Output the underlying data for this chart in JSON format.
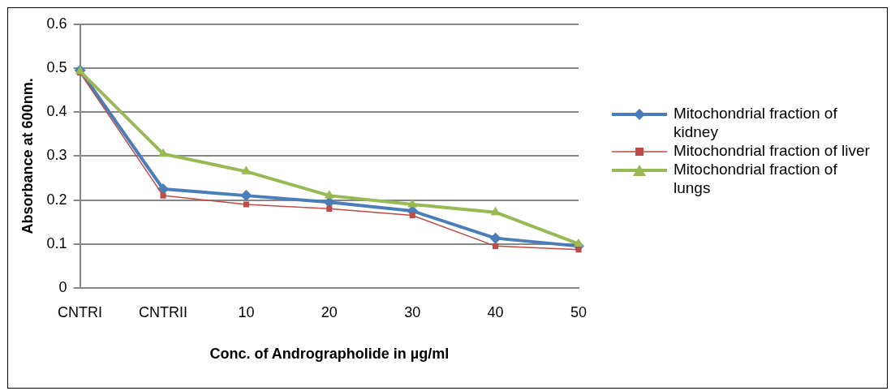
{
  "chart_data": {
    "type": "line",
    "xlabel": "Conc. of Andrographolide in µg/ml",
    "ylabel": "Absorbance at 600nm.",
    "categories": [
      "CNTRI",
      "CNTRII",
      "10",
      "20",
      "30",
      "40",
      "50"
    ],
    "series": [
      {
        "name": "Mitochondrial fraction of kidney",
        "color": "#4a7ebb",
        "marker": "diamond",
        "values": [
          0.495,
          0.225,
          0.21,
          0.195,
          0.175,
          0.113,
          0.095
        ]
      },
      {
        "name": "Mitochondrial fraction of liver",
        "color": "#be4b48",
        "marker": "square",
        "values": [
          0.49,
          0.21,
          0.19,
          0.18,
          0.165,
          0.095,
          0.087
        ]
      },
      {
        "name": "Mitochondrial fraction of lungs",
        "color": "#98b954",
        "marker": "triangle",
        "values": [
          0.493,
          0.305,
          0.265,
          0.21,
          0.19,
          0.172,
          0.1
        ]
      }
    ],
    "ylim": [
      0,
      0.6
    ],
    "yticks": [
      0,
      0.1,
      0.2,
      0.3,
      0.4,
      0.5,
      0.6
    ],
    "grid": "y",
    "legend": "right"
  }
}
